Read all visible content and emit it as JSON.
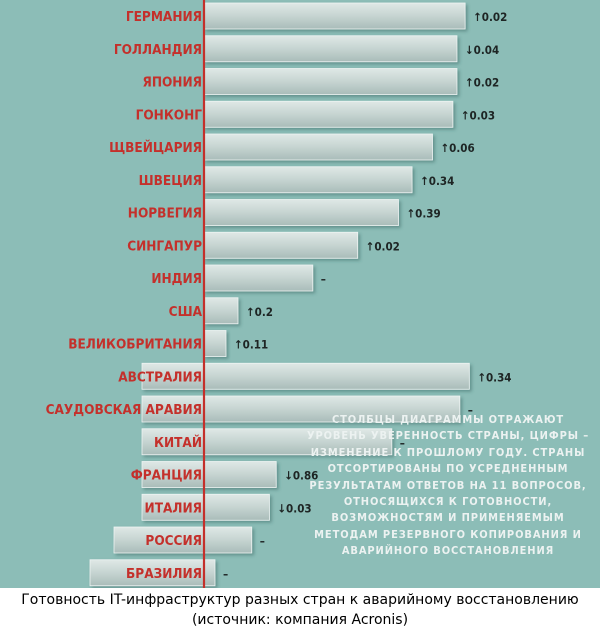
{
  "chart_data": {
    "type": "bar",
    "orientation": "horizontal",
    "sorted": "descending",
    "categories": [
      "ГЕРМАНИЯ",
      "ГОЛЛАНДИЯ",
      "ЯПОНИЯ",
      "ГОНКОНГ",
      "ЩВЕЙЦАРИЯ",
      "ШВЕЦИЯ",
      "НОРВЕГИЯ",
      "СИНГАПУР",
      "ИНДИЯ",
      "США",
      "ВЕЛИКОБРИТАНИЯ",
      "АВСТРАЛИЯ",
      "САУДОВСКАЯ АРАВИЯ",
      "КИТАЙ",
      "ФРАНЦИЯ",
      "ИТАЛИЯ",
      "РОССИЯ",
      "БРАЗИЛИЯ"
    ],
    "values": [
      6.92,
      6.86,
      6.86,
      6.83,
      6.68,
      6.53,
      6.43,
      6.13,
      5.8,
      5.25,
      5.11,
      4.6,
      4.53,
      4.03,
      3.18,
      3.13,
      3.0,
      2.73
    ],
    "baseline": 5.0,
    "xlim": [
      2.0,
      7.0
    ],
    "changes": [
      "↑0.02",
      "↓0.04",
      "↑0.02",
      "↑0.03",
      "↑0.06",
      "↑0.34",
      "↑0.39",
      "↑0.02",
      "–",
      "↑0.2",
      "↑0.11",
      "↑0.34",
      "–",
      "–",
      "↓0.86",
      "↓0.03",
      "–",
      "–"
    ],
    "grid": false,
    "note": "СТОЛБЦЫ ДИАГРАММЫ ОТРАЖАЮТ УРОВЕНЬ УВЕРЕННОСТЬ СТРАНЫ, ЦИФРЫ – ИЗМЕНЕНИЕ К ПРОШЛОМУ ГОДУ. СТРАНЫ ОТСОРТИРОВАНЫ ПО УСРЕДНЕННЫМ РЕЗУЛЬТАТАМ ОТВЕТОВ НА 11 ВОПРОСОВ, ОТНОСЯЩИХСЯ К ГОТОВНОСТИ, ВОЗМОЖНОСТЯМ И ПРИМЕНЯЕМЫМ МЕТОДАМ РЕЗЕРВНОГО КОПИРОВАНИЯ И АВАРИЙНОГО ВОССТАНОВЛЕНИЯ",
    "colors": {
      "background": "#8cbdb7",
      "bar": "#c8d6d3",
      "axis": "#c4302b",
      "label": "#c4302b",
      "change": "#1e2524"
    }
  },
  "caption": "Готовность IT-инфраструктур разных стран к аварийному восстановлению (источник: компания Acronis)"
}
